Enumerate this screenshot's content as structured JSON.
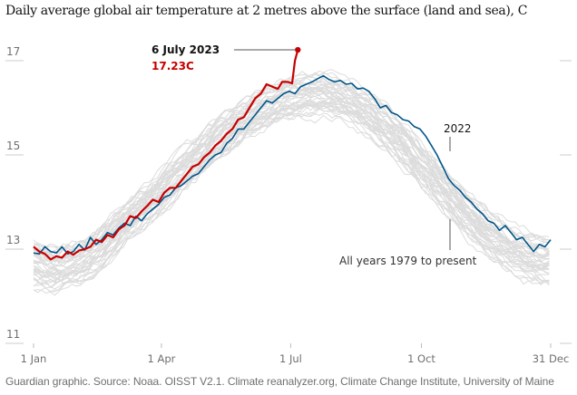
{
  "chart_data": {
    "type": "line",
    "title": "Daily average global air temperature at 2 metres above the surface (land and sea), C",
    "xlabel": "",
    "ylabel": "",
    "ylim": [
      11,
      17.4
    ],
    "xlim": [
      1,
      365
    ],
    "grid": false,
    "yticks": [
      {
        "value": 17,
        "label": "17"
      },
      {
        "value": 15,
        "label": "15"
      },
      {
        "value": 13,
        "label": "13"
      },
      {
        "value": 11,
        "label": "11"
      }
    ],
    "xticks": [
      {
        "day": 1,
        "label": "1 Jan"
      },
      {
        "day": 91,
        "label": "1 Apr"
      },
      {
        "day": 182,
        "label": "1 Jul"
      },
      {
        "day": 274,
        "label": "1 Oct"
      },
      {
        "day": 365,
        "label": "31 Dec"
      }
    ],
    "series": [
      {
        "name": "2023",
        "color": "#c70000",
        "points": [
          [
            1,
            13.05
          ],
          [
            5,
            12.95
          ],
          [
            9,
            12.9
          ],
          [
            13,
            12.78
          ],
          [
            17,
            12.85
          ],
          [
            21,
            12.82
          ],
          [
            25,
            12.95
          ],
          [
            29,
            12.88
          ],
          [
            33,
            12.97
          ],
          [
            37,
            13.0
          ],
          [
            41,
            13.05
          ],
          [
            45,
            13.2
          ],
          [
            49,
            13.15
          ],
          [
            53,
            13.3
          ],
          [
            57,
            13.25
          ],
          [
            61,
            13.42
          ],
          [
            65,
            13.5
          ],
          [
            69,
            13.7
          ],
          [
            73,
            13.66
          ],
          [
            77,
            13.8
          ],
          [
            81,
            13.92
          ],
          [
            85,
            14.05
          ],
          [
            89,
            14.0
          ],
          [
            93,
            14.2
          ],
          [
            97,
            14.3
          ],
          [
            101,
            14.3
          ],
          [
            105,
            14.45
          ],
          [
            109,
            14.6
          ],
          [
            113,
            14.75
          ],
          [
            117,
            14.8
          ],
          [
            121,
            14.95
          ],
          [
            125,
            15.05
          ],
          [
            129,
            15.2
          ],
          [
            133,
            15.3
          ],
          [
            137,
            15.45
          ],
          [
            141,
            15.55
          ],
          [
            145,
            15.75
          ],
          [
            149,
            15.8
          ],
          [
            153,
            16.0
          ],
          [
            157,
            16.2
          ],
          [
            161,
            16.3
          ],
          [
            165,
            16.5
          ],
          [
            169,
            16.45
          ],
          [
            173,
            16.4
          ],
          [
            176,
            16.55
          ],
          [
            180,
            16.55
          ],
          [
            183,
            16.52
          ],
          [
            185,
            17.0
          ],
          [
            187,
            17.23
          ]
        ]
      },
      {
        "name": "2022",
        "color": "#005689",
        "points": [
          [
            1,
            12.92
          ],
          [
            5,
            12.9
          ],
          [
            9,
            13.05
          ],
          [
            13,
            12.95
          ],
          [
            17,
            12.92
          ],
          [
            21,
            13.05
          ],
          [
            25,
            12.9
          ],
          [
            29,
            12.95
          ],
          [
            33,
            13.1
          ],
          [
            37,
            12.98
          ],
          [
            41,
            13.25
          ],
          [
            45,
            13.1
          ],
          [
            49,
            13.2
          ],
          [
            53,
            13.35
          ],
          [
            57,
            13.3
          ],
          [
            61,
            13.45
          ],
          [
            65,
            13.55
          ],
          [
            69,
            13.5
          ],
          [
            73,
            13.7
          ],
          [
            77,
            13.6
          ],
          [
            81,
            13.75
          ],
          [
            85,
            13.85
          ],
          [
            89,
            13.95
          ],
          [
            93,
            14.1
          ],
          [
            97,
            14.15
          ],
          [
            101,
            14.3
          ],
          [
            105,
            14.35
          ],
          [
            109,
            14.45
          ],
          [
            113,
            14.55
          ],
          [
            117,
            14.6
          ],
          [
            121,
            14.75
          ],
          [
            125,
            14.9
          ],
          [
            129,
            15.0
          ],
          [
            133,
            15.05
          ],
          [
            137,
            15.25
          ],
          [
            141,
            15.35
          ],
          [
            145,
            15.55
          ],
          [
            149,
            15.55
          ],
          [
            153,
            15.7
          ],
          [
            157,
            15.85
          ],
          [
            161,
            16.0
          ],
          [
            165,
            16.15
          ],
          [
            169,
            16.1
          ],
          [
            173,
            16.2
          ],
          [
            177,
            16.3
          ],
          [
            181,
            16.35
          ],
          [
            185,
            16.3
          ],
          [
            189,
            16.45
          ],
          [
            193,
            16.5
          ],
          [
            197,
            16.55
          ],
          [
            201,
            16.62
          ],
          [
            205,
            16.68
          ],
          [
            209,
            16.6
          ],
          [
            213,
            16.55
          ],
          [
            217,
            16.58
          ],
          [
            221,
            16.5
          ],
          [
            225,
            16.52
          ],
          [
            229,
            16.4
          ],
          [
            233,
            16.42
          ],
          [
            237,
            16.35
          ],
          [
            241,
            16.2
          ],
          [
            245,
            16.0
          ],
          [
            249,
            16.05
          ],
          [
            253,
            15.9
          ],
          [
            257,
            15.85
          ],
          [
            261,
            15.75
          ],
          [
            265,
            15.72
          ],
          [
            269,
            15.6
          ],
          [
            273,
            15.55
          ],
          [
            277,
            15.4
          ],
          [
            281,
            15.2
          ],
          [
            285,
            15.0
          ],
          [
            289,
            14.75
          ],
          [
            293,
            14.5
          ],
          [
            297,
            14.35
          ],
          [
            301,
            14.25
          ],
          [
            305,
            14.1
          ],
          [
            309,
            14.0
          ],
          [
            313,
            13.85
          ],
          [
            317,
            13.75
          ],
          [
            321,
            13.6
          ],
          [
            325,
            13.55
          ],
          [
            329,
            13.4
          ],
          [
            333,
            13.5
          ],
          [
            337,
            13.35
          ],
          [
            341,
            13.2
          ],
          [
            345,
            13.25
          ],
          [
            349,
            13.1
          ],
          [
            353,
            12.95
          ],
          [
            357,
            13.1
          ],
          [
            361,
            13.05
          ],
          [
            365,
            13.2
          ]
        ]
      },
      {
        "name": "All years 1979 to present",
        "color": "#dcdcdc",
        "band": {
          "years": 43,
          "summer_peak_low": 15.9,
          "summer_peak_high": 16.65,
          "jan_low": 12.3,
          "jan_high": 13.1,
          "dec_low": 12.3,
          "dec_high": 13.2
        }
      }
    ],
    "annotations": [
      {
        "label": "6 July 2023",
        "value_label": "17.23C",
        "day": 187,
        "value": 17.23
      },
      {
        "label": "2022",
        "day": 300
      },
      {
        "label": "All years 1979 to present",
        "day": 300
      }
    ]
  },
  "source": "Guardian graphic. Source: Noaa. OISST V2.1. Climate reanalyzer.org, Climate Change Institute, University of Maine"
}
